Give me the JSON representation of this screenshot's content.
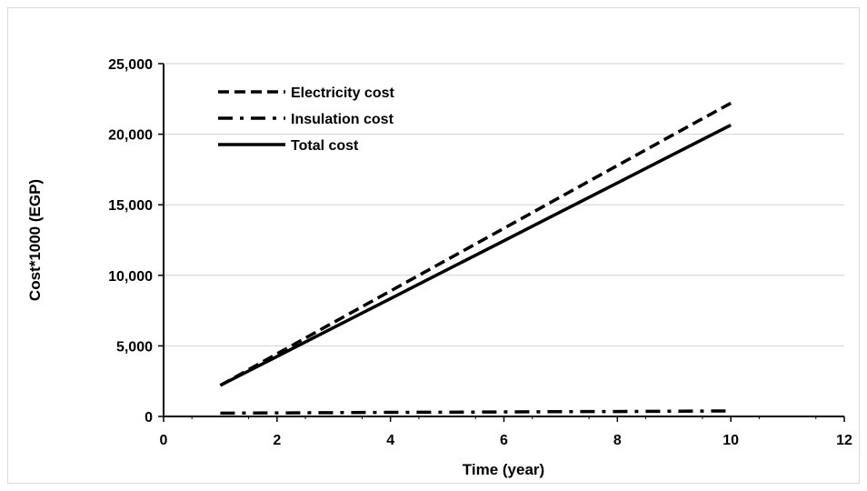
{
  "chart_data": {
    "type": "line",
    "title": "",
    "xlabel": "Time (year)",
    "ylabel": "Cost*1000 (EGP)",
    "xlim": [
      0,
      12
    ],
    "ylim": [
      0,
      25000
    ],
    "x_ticks": [
      0,
      2,
      4,
      6,
      8,
      10,
      12
    ],
    "x_tick_labels": [
      "0",
      "2",
      "4",
      "6",
      "8",
      "10",
      "12"
    ],
    "y_ticks": [
      0,
      5000,
      10000,
      15000,
      20000,
      25000
    ],
    "y_tick_labels": [
      "0",
      "5,000",
      "10,000",
      "15,000",
      "20,000",
      "25,000"
    ],
    "grid": "horizontal",
    "legend_position": "top-left",
    "series": [
      {
        "name": "Electricity cost",
        "style": "dashed",
        "color": "#000000",
        "x": [
          1,
          2,
          3,
          4,
          5,
          6,
          7,
          8,
          9,
          10
        ],
        "y": [
          2200,
          4440,
          6670,
          8890,
          11110,
          13330,
          15560,
          17780,
          20000,
          22200
        ]
      },
      {
        "name": "Insulation cost",
        "style": "dash-dot",
        "color": "#000000",
        "x": [
          1,
          2,
          3,
          4,
          5,
          6,
          7,
          8,
          9,
          10
        ],
        "y": [
          230,
          250,
          270,
          290,
          300,
          320,
          340,
          350,
          370,
          390
        ]
      },
      {
        "name": "Total cost",
        "style": "solid",
        "color": "#000000",
        "x": [
          1,
          2,
          3,
          4,
          5,
          6,
          7,
          8,
          9,
          10
        ],
        "y": [
          2200,
          4250,
          6300,
          8350,
          10400,
          12450,
          14500,
          16550,
          18600,
          20650
        ]
      }
    ]
  }
}
